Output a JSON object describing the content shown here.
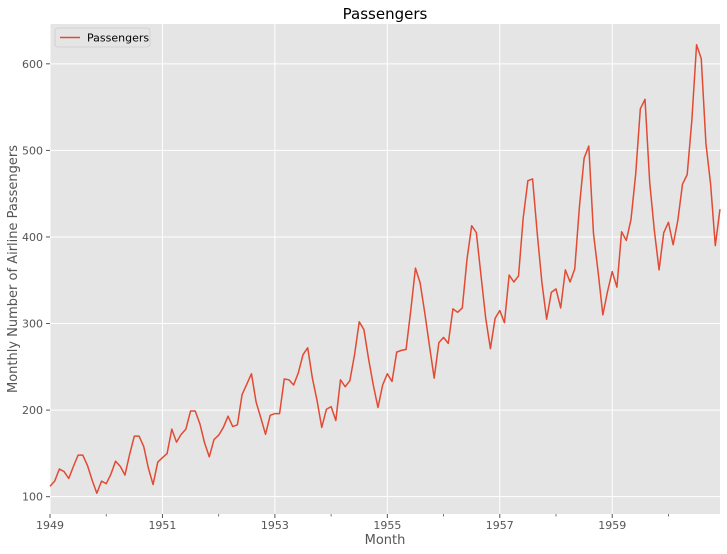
{
  "chart_data": {
    "type": "line",
    "title": "Passengers",
    "xlabel": "Month",
    "ylabel": "Monthly Number of Airline Passengers",
    "xlim": [
      1949.0,
      1960.917
    ],
    "ylim": [
      80,
      646
    ],
    "grid": true,
    "legend_position": "top-left",
    "x_ticks": [
      {
        "value": 1949,
        "label": "1949"
      },
      {
        "value": 1951,
        "label": "1951"
      },
      {
        "value": 1953,
        "label": "1953"
      },
      {
        "value": 1955,
        "label": "1955"
      },
      {
        "value": 1957,
        "label": "1957"
      },
      {
        "value": 1959,
        "label": "1959"
      }
    ],
    "x_minor_ticks": [
      1950,
      1952,
      1954,
      1956,
      1958,
      1960
    ],
    "y_ticks": [
      {
        "value": 100,
        "label": "100"
      },
      {
        "value": 200,
        "label": "200"
      },
      {
        "value": 300,
        "label": "300"
      },
      {
        "value": 400,
        "label": "400"
      },
      {
        "value": 500,
        "label": "500"
      },
      {
        "value": 600,
        "label": "600"
      }
    ],
    "series": [
      {
        "name": "Passengers",
        "color": "#E24A33",
        "start_year": 1949,
        "values": [
          112,
          118,
          132,
          129,
          121,
          135,
          148,
          148,
          136,
          119,
          104,
          118,
          115,
          126,
          141,
          135,
          125,
          149,
          170,
          170,
          158,
          133,
          114,
          140,
          145,
          150,
          178,
          163,
          172,
          178,
          199,
          199,
          184,
          162,
          146,
          166,
          171,
          180,
          193,
          181,
          183,
          218,
          230,
          242,
          209,
          191,
          172,
          194,
          196,
          196,
          236,
          235,
          229,
          243,
          264,
          272,
          237,
          211,
          180,
          201,
          204,
          188,
          235,
          227,
          234,
          264,
          302,
          293,
          259,
          229,
          203,
          229,
          242,
          233,
          267,
          269,
          270,
          315,
          364,
          347,
          312,
          274,
          237,
          278,
          284,
          277,
          317,
          313,
          318,
          374,
          413,
          405,
          355,
          306,
          271,
          306,
          315,
          301,
          356,
          348,
          355,
          422,
          465,
          467,
          404,
          347,
          305,
          336,
          340,
          318,
          362,
          348,
          363,
          435,
          491,
          505,
          404,
          359,
          310,
          337,
          360,
          342,
          406,
          396,
          420,
          472,
          548,
          559,
          463,
          407,
          362,
          405,
          417,
          391,
          419,
          461,
          472,
          535,
          622,
          606,
          508,
          461,
          390,
          432
        ]
      }
    ]
  },
  "colors": {
    "plot_background": "#E5E5E5",
    "grid": "#FFFFFF",
    "line": "#E24A33",
    "text": "#555555"
  }
}
